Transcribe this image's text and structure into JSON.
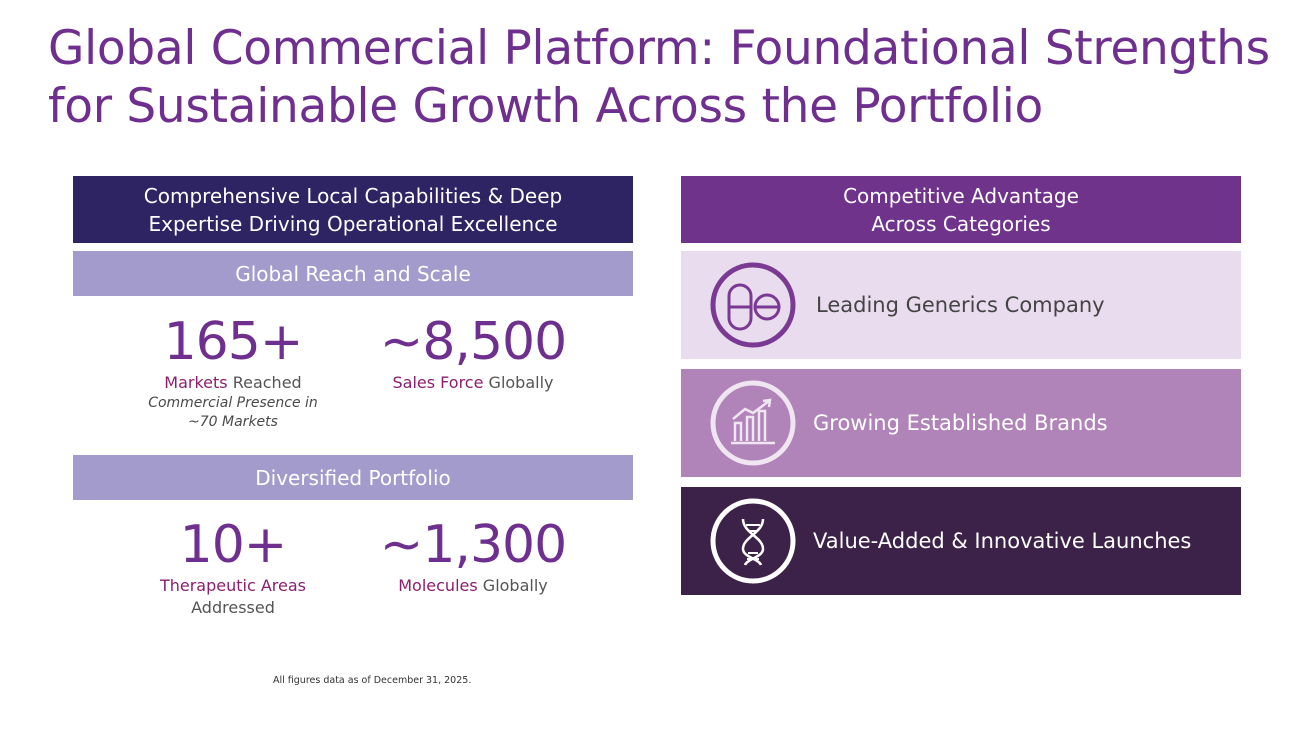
{
  "title": {
    "line1": "Global Commercial Platform: Foundational Strengths",
    "line2": "for Sustainable Growth Across the Portfolio"
  },
  "left": {
    "header": {
      "line1": "Comprehensive Local Capabilities & Deep",
      "line2": "Expertise Driving Operational Excellence"
    },
    "reach": {
      "band": "Global Reach and Scale",
      "markets": {
        "number": "165+",
        "highlight": "Markets",
        "rest": " Reached",
        "note1": "Commercial Presence in",
        "note2": "~70 Markets"
      },
      "sales": {
        "number": "~8,500",
        "highlight": "Sales Force",
        "rest": " Globally"
      }
    },
    "portfolio": {
      "band": "Diversified Portfolio",
      "areas": {
        "number": "10+",
        "highlight": "Therapeutic Areas",
        "line2": "Addressed"
      },
      "molecules": {
        "number": "~1,300",
        "highlight": "Molecules",
        "rest": " Globally"
      }
    }
  },
  "right": {
    "header": {
      "line1": "Competitive Advantage",
      "line2": "Across Categories"
    },
    "categories": [
      {
        "label": "Leading Generics Company",
        "icon": "pill-icon"
      },
      {
        "label": "Growing Established Brands",
        "icon": "growth-chart-icon"
      },
      {
        "label": "Value-Added & Innovative Launches",
        "icon": "dna-icon"
      }
    ]
  },
  "footnote": "All figures data as of December 31, 2025.",
  "colors": {
    "title": "#6e2f8f",
    "left_header": "#2e2464",
    "band": "#a39bcb",
    "right_header": "#70338c",
    "cat1": "#e8dcee",
    "cat2": "#b084b8",
    "cat3": "#3c2249",
    "highlight": "#8a1f6e"
  }
}
